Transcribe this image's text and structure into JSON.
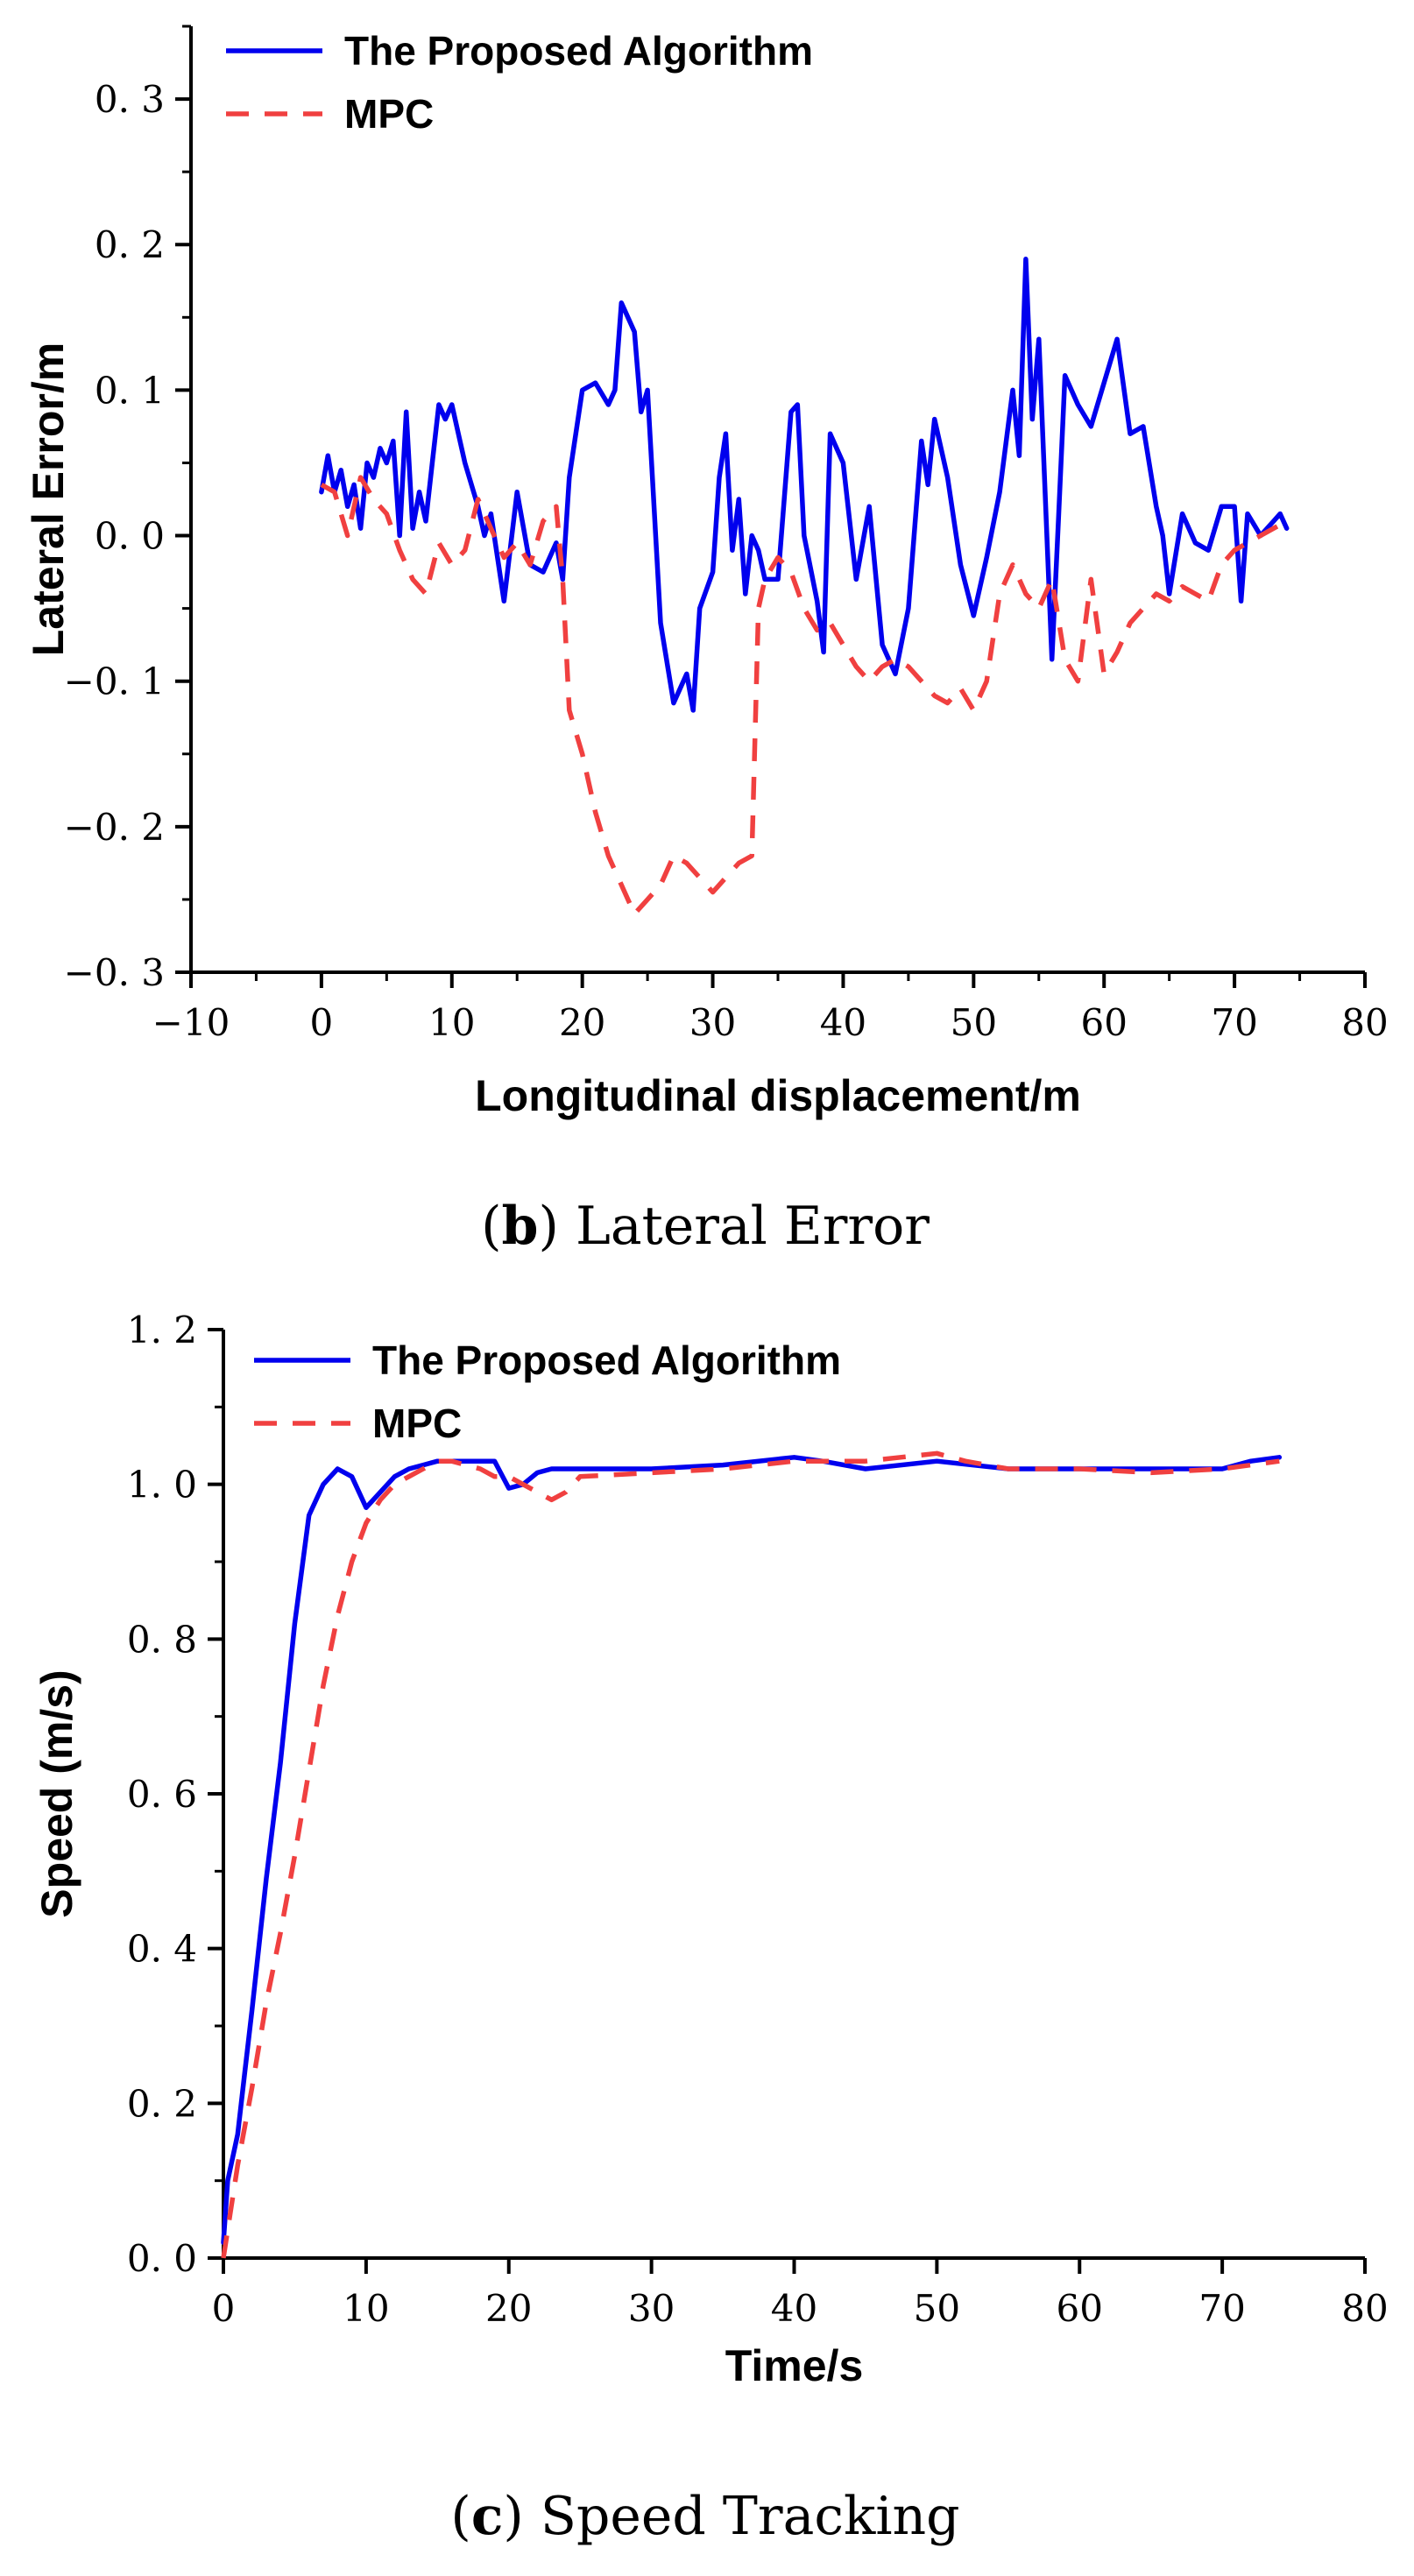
{
  "chart_data": [
    {
      "id": "lateral",
      "type": "line",
      "caption_letter": "b",
      "caption_text": "Lateral Error",
      "xlabel": "Longitudinal displacement/m",
      "ylabel": "Lateral Error/m",
      "xlim": [
        -10,
        80
      ],
      "ylim": [
        -0.3,
        0.35
      ],
      "xticks": [
        -10,
        0,
        10,
        20,
        30,
        40,
        50,
        60,
        70,
        80
      ],
      "xtick_labels": [
        "−10",
        "0",
        "10",
        "20",
        "30",
        "40",
        "50",
        "60",
        "70",
        "80"
      ],
      "yticks": [
        -0.3,
        -0.2,
        -0.1,
        0.0,
        0.1,
        0.2,
        0.3
      ],
      "ytick_labels": [
        "−0. 3",
        "−0. 2",
        "−0. 1",
        "0. 0",
        "0. 1",
        "0. 2",
        "0. 3"
      ],
      "legend_position": "top-left",
      "series": [
        {
          "name": "The Proposed Algorithm",
          "color": "#0000ee",
          "style": "solid",
          "x": [
            0,
            0.5,
            1,
            1.5,
            2,
            2.5,
            3,
            3.5,
            4,
            4.5,
            5,
            5.5,
            6,
            6.5,
            7,
            7.5,
            8,
            8.5,
            9,
            9.5,
            10,
            10.5,
            11,
            12,
            12.5,
            13,
            14,
            15,
            16,
            17,
            18,
            18.5,
            19,
            20,
            21,
            22,
            22.5,
            23,
            24,
            24.5,
            25,
            26,
            27,
            28,
            28.5,
            29,
            30,
            30.5,
            31,
            31.5,
            32,
            32.5,
            33,
            33.5,
            34,
            35,
            36,
            36.5,
            37,
            38,
            38.5,
            39,
            40,
            41,
            42,
            43,
            44,
            45,
            46,
            46.5,
            47,
            48,
            49,
            50,
            51,
            52,
            53,
            53.5,
            54,
            54.5,
            55,
            56,
            56.5,
            57,
            58,
            59,
            60,
            61,
            62,
            63,
            64,
            64.5,
            65,
            66,
            67,
            68,
            69,
            70,
            70.5,
            71,
            72,
            73,
            73.5,
            74
          ],
          "y": [
            0.03,
            0.055,
            0.03,
            0.045,
            0.02,
            0.035,
            0.005,
            0.05,
            0.04,
            0.06,
            0.05,
            0.065,
            0.0,
            0.085,
            0.005,
            0.03,
            0.01,
            0.05,
            0.09,
            0.08,
            0.09,
            0.07,
            0.05,
            0.02,
            0.0,
            0.015,
            -0.045,
            0.03,
            -0.02,
            -0.025,
            -0.005,
            -0.03,
            0.04,
            0.1,
            0.105,
            0.09,
            0.1,
            0.16,
            0.14,
            0.085,
            0.1,
            -0.06,
            -0.115,
            -0.095,
            -0.12,
            -0.05,
            -0.025,
            0.04,
            0.07,
            -0.01,
            0.025,
            -0.04,
            0.0,
            -0.01,
            -0.03,
            -0.03,
            0.085,
            0.09,
            0.0,
            -0.045,
            -0.08,
            0.07,
            0.05,
            -0.03,
            0.02,
            -0.075,
            -0.095,
            -0.05,
            0.065,
            0.035,
            0.08,
            0.04,
            -0.02,
            -0.055,
            -0.015,
            0.03,
            0.1,
            0.055,
            0.19,
            0.08,
            0.135,
            -0.085,
            0.01,
            0.11,
            0.09,
            0.075,
            0.105,
            0.135,
            0.07,
            0.075,
            0.02,
            0.0,
            -0.04,
            0.015,
            -0.005,
            -0.01,
            0.02,
            0.02,
            -0.045,
            0.015,
            0.0,
            0.01,
            0.015,
            0.005
          ]
        },
        {
          "name": "MPC",
          "color": "#f04040",
          "style": "dashed",
          "x": [
            0,
            1,
            2,
            3,
            4,
            5,
            6,
            7,
            8,
            9,
            10,
            11,
            12,
            13,
            14,
            15,
            16,
            17,
            18,
            18.5,
            19,
            20,
            21,
            22,
            23,
            24,
            25,
            26,
            27,
            28,
            29,
            30,
            31,
            32,
            33,
            33.5,
            34,
            35,
            36,
            37,
            38,
            39,
            40,
            41,
            42,
            43,
            44,
            45,
            46,
            47,
            48,
            49,
            50,
            51,
            52,
            53,
            54,
            55,
            56,
            57,
            58,
            59,
            60,
            61,
            62,
            63,
            64,
            65,
            66,
            67,
            68,
            69,
            70,
            71,
            72,
            73,
            74
          ],
          "y": [
            0.035,
            0.03,
            0.0,
            0.04,
            0.025,
            0.015,
            -0.01,
            -0.03,
            -0.04,
            -0.005,
            -0.02,
            -0.01,
            0.025,
            0.005,
            -0.015,
            -0.005,
            -0.02,
            0.01,
            0.02,
            -0.03,
            -0.12,
            -0.15,
            -0.19,
            -0.22,
            -0.24,
            -0.26,
            -0.25,
            -0.24,
            -0.22,
            -0.225,
            -0.235,
            -0.245,
            -0.235,
            -0.225,
            -0.22,
            -0.05,
            -0.03,
            -0.015,
            -0.025,
            -0.05,
            -0.065,
            -0.06,
            -0.075,
            -0.09,
            -0.1,
            -0.09,
            -0.085,
            -0.09,
            -0.1,
            -0.11,
            -0.115,
            -0.105,
            -0.12,
            -0.1,
            -0.04,
            -0.02,
            -0.04,
            -0.05,
            -0.03,
            -0.085,
            -0.1,
            -0.03,
            -0.095,
            -0.08,
            -0.06,
            -0.05,
            -0.04,
            -0.045,
            -0.035,
            -0.04,
            -0.045,
            -0.02,
            -0.01,
            -0.005,
            0.0,
            0.005,
            0.01
          ]
        }
      ]
    },
    {
      "id": "speed",
      "type": "line",
      "caption_letter": "c",
      "caption_text": "Speed Tracking",
      "xlabel": "Time/s",
      "ylabel": "Speed (m/s)",
      "xlim": [
        0,
        80
      ],
      "ylim": [
        0,
        1.2
      ],
      "xticks": [
        0,
        10,
        20,
        30,
        40,
        50,
        60,
        70,
        80
      ],
      "xtick_labels": [
        "0",
        "10",
        "20",
        "30",
        "40",
        "50",
        "60",
        "70",
        "80"
      ],
      "yticks": [
        0.0,
        0.2,
        0.4,
        0.6,
        0.8,
        1.0,
        1.2
      ],
      "ytick_labels": [
        "0. 0",
        "0. 2",
        "0. 4",
        "0. 6",
        "0. 8",
        "1. 0",
        "1. 2"
      ],
      "legend_position": "top-left",
      "series": [
        {
          "name": "The Proposed Algorithm",
          "color": "#0000ee",
          "style": "solid",
          "x": [
            0,
            0.3,
            1,
            1.5,
            2,
            3,
            4,
            5,
            6,
            7,
            8,
            9,
            10,
            11,
            12,
            13,
            14,
            15,
            16,
            17,
            18,
            19,
            20,
            21,
            22,
            23,
            25,
            30,
            35,
            40,
            42,
            45,
            50,
            55,
            60,
            65,
            70,
            72,
            74
          ],
          "y": [
            0.02,
            0.1,
            0.16,
            0.24,
            0.32,
            0.49,
            0.64,
            0.82,
            0.96,
            1.0,
            1.02,
            1.01,
            0.97,
            0.99,
            1.01,
            1.02,
            1.025,
            1.03,
            1.03,
            1.03,
            1.03,
            1.03,
            0.995,
            1.0,
            1.015,
            1.02,
            1.02,
            1.02,
            1.025,
            1.035,
            1.03,
            1.02,
            1.03,
            1.02,
            1.02,
            1.02,
            1.02,
            1.03,
            1.035
          ]
        },
        {
          "name": "MPC",
          "color": "#f04040",
          "style": "dashed",
          "x": [
            0,
            0.5,
            1,
            2,
            3,
            4,
            5,
            6,
            7,
            8,
            9,
            10,
            11,
            12,
            13,
            14,
            15,
            16,
            17,
            18,
            19,
            20,
            21,
            22,
            23,
            24,
            25,
            30,
            35,
            40,
            45,
            50,
            51,
            52,
            55,
            60,
            65,
            70,
            74
          ],
          "y": [
            0.0,
            0.06,
            0.12,
            0.22,
            0.33,
            0.42,
            0.52,
            0.63,
            0.74,
            0.83,
            0.9,
            0.95,
            0.98,
            1.0,
            1.01,
            1.02,
            1.03,
            1.03,
            1.025,
            1.02,
            1.01,
            1.01,
            1.0,
            0.99,
            0.98,
            0.99,
            1.01,
            1.015,
            1.02,
            1.03,
            1.03,
            1.04,
            1.035,
            1.03,
            1.02,
            1.02,
            1.015,
            1.02,
            1.03
          ]
        }
      ]
    }
  ]
}
